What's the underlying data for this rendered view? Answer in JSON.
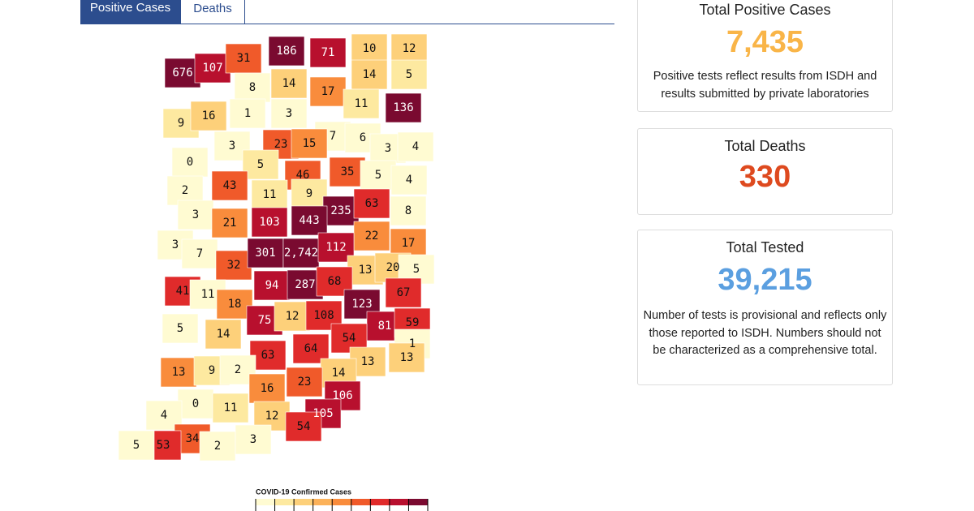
{
  "tabs": [
    "Positive Cases",
    "Deaths"
  ],
  "cards": [
    {
      "title": "Total Positive Cases",
      "value": "7,435",
      "color": "#f9b548",
      "text": "Positive tests reflect results from ISDH and results submitted by private laboratories"
    },
    {
      "title": "Total Deaths",
      "value": "330",
      "color": "#de4a1f"
    },
    {
      "title": "Total Tested",
      "value": "39,215",
      "color": "#5b9fe0",
      "text": "Number of tests is provisional and reflects only those reported to ISDH. Numbers should not be characterized as a comprehensive total."
    }
  ],
  "map": {
    "legend": {
      "title": "COVID-19 Confirmed Cases",
      "colors": [
        "#fffbd2",
        "#fde9a0",
        "#fdd07a",
        "#fcb25a",
        "#f98c3c",
        "#f05a2a",
        "#e02b2b",
        "#b8102e",
        "#7a0a30"
      ]
    },
    "counties": [
      {
        "label": "676",
        "color": "#7a0a30"
      },
      {
        "label": "107",
        "color": "#b8102e"
      },
      {
        "label": "31",
        "color": "#f05a2a"
      },
      {
        "label": "186",
        "color": "#7a0a30"
      },
      {
        "label": "71",
        "color": "#b8102e"
      },
      {
        "label": "10",
        "color": "#fdd07a"
      },
      {
        "label": "12",
        "color": "#fdd07a"
      },
      {
        "label": "14",
        "color": "#fdd07a"
      },
      {
        "label": "5",
        "color": "#fde9a0"
      },
      {
        "label": "8",
        "color": "#fffbd2"
      },
      {
        "label": "14",
        "color": "#fdd07a"
      },
      {
        "label": "17",
        "color": "#f98c3c"
      },
      {
        "label": "11",
        "color": "#fde9a0"
      },
      {
        "label": "136",
        "color": "#7a0a30"
      },
      {
        "label": "9",
        "color": "#fde9a0"
      },
      {
        "label": "16",
        "color": "#fdd07a"
      },
      {
        "label": "1",
        "color": "#fffbd2"
      },
      {
        "label": "3",
        "color": "#fffbd2"
      },
      {
        "label": "7",
        "color": "#fffbd2"
      },
      {
        "label": "6",
        "color": "#fffbd2"
      },
      {
        "label": "3",
        "color": "#fffbd2"
      },
      {
        "label": "4",
        "color": "#fffbd2"
      },
      {
        "label": "3",
        "color": "#fffbd2"
      },
      {
        "label": "23",
        "color": "#f05a2a"
      },
      {
        "label": "15",
        "color": "#f98c3c"
      },
      {
        "label": "0",
        "color": "#fffbd2"
      },
      {
        "label": "5",
        "color": "#fde9a0"
      },
      {
        "label": "46",
        "color": "#f05a2a"
      },
      {
        "label": "35",
        "color": "#f05a2a"
      },
      {
        "label": "5",
        "color": "#fffbd2"
      },
      {
        "label": "4",
        "color": "#fffbd2"
      },
      {
        "label": "2",
        "color": "#fffbd2"
      },
      {
        "label": "43",
        "color": "#f05a2a"
      },
      {
        "label": "11",
        "color": "#fde9a0"
      },
      {
        "label": "9",
        "color": "#fde9a0"
      },
      {
        "label": "235",
        "color": "#7a0a30"
      },
      {
        "label": "63",
        "color": "#e02b2b"
      },
      {
        "label": "8",
        "color": "#fffbd2"
      },
      {
        "label": "3",
        "color": "#fffbd2"
      },
      {
        "label": "21",
        "color": "#f98c3c"
      },
      {
        "label": "103",
        "color": "#b8102e"
      },
      {
        "label": "443",
        "color": "#7a0a30"
      },
      {
        "label": "22",
        "color": "#f98c3c"
      },
      {
        "label": "17",
        "color": "#f98c3c"
      },
      {
        "label": "3",
        "color": "#fffbd2"
      },
      {
        "label": "7",
        "color": "#fffbd2"
      },
      {
        "label": "32",
        "color": "#f05a2a"
      },
      {
        "label": "301",
        "color": "#7a0a30"
      },
      {
        "label": "2,742",
        "color": "#7a0a30"
      },
      {
        "label": "112",
        "color": "#b8102e"
      },
      {
        "label": "13",
        "color": "#fdd07a"
      },
      {
        "label": "20",
        "color": "#fdd07a"
      },
      {
        "label": "5",
        "color": "#fffbd2"
      },
      {
        "label": "41",
        "color": "#e02b2b"
      },
      {
        "label": "11",
        "color": "#fffbd2"
      },
      {
        "label": "94",
        "color": "#b8102e"
      },
      {
        "label": "287",
        "color": "#7a0a30"
      },
      {
        "label": "68",
        "color": "#e02b2b"
      },
      {
        "label": "67",
        "color": "#e02b2b"
      },
      {
        "label": "18",
        "color": "#f98c3c"
      },
      {
        "label": "123",
        "color": "#7a0a30"
      },
      {
        "label": "5",
        "color": "#fffbd2"
      },
      {
        "label": "14",
        "color": "#fdd07a"
      },
      {
        "label": "75",
        "color": "#b8102e"
      },
      {
        "label": "12",
        "color": "#fdd07a"
      },
      {
        "label": "108",
        "color": "#e02b2b"
      },
      {
        "label": "81",
        "color": "#b8102e"
      },
      {
        "label": "59",
        "color": "#e02b2b"
      },
      {
        "label": "1",
        "color": "#fffbd2"
      },
      {
        "label": "54",
        "color": "#e02b2b"
      },
      {
        "label": "64",
        "color": "#e02b2b"
      },
      {
        "label": "63",
        "color": "#e02b2b"
      },
      {
        "label": "13",
        "color": "#f98c3c"
      },
      {
        "label": "9",
        "color": "#fde9a0"
      },
      {
        "label": "2",
        "color": "#fffbd2"
      },
      {
        "label": "13",
        "color": "#fdd07a"
      },
      {
        "label": "13",
        "color": "#fdd07a"
      },
      {
        "label": "14",
        "color": "#fdd07a"
      },
      {
        "label": "23",
        "color": "#f05a2a"
      },
      {
        "label": "16",
        "color": "#f98c3c"
      },
      {
        "label": "106",
        "color": "#b8102e"
      },
      {
        "label": "0",
        "color": "#fffbd2"
      },
      {
        "label": "11",
        "color": "#fde9a0"
      },
      {
        "label": "4",
        "color": "#fffbd2"
      },
      {
        "label": "105",
        "color": "#b8102e"
      },
      {
        "label": "12",
        "color": "#fdd07a"
      },
      {
        "label": "54",
        "color": "#e02b2b"
      },
      {
        "label": "34",
        "color": "#f05a2a"
      },
      {
        "label": "53",
        "color": "#e02b2b"
      },
      {
        "label": "5",
        "color": "#fffbd2"
      },
      {
        "label": "2",
        "color": "#fffbd2"
      },
      {
        "label": "3",
        "color": "#fffbd2"
      }
    ]
  }
}
